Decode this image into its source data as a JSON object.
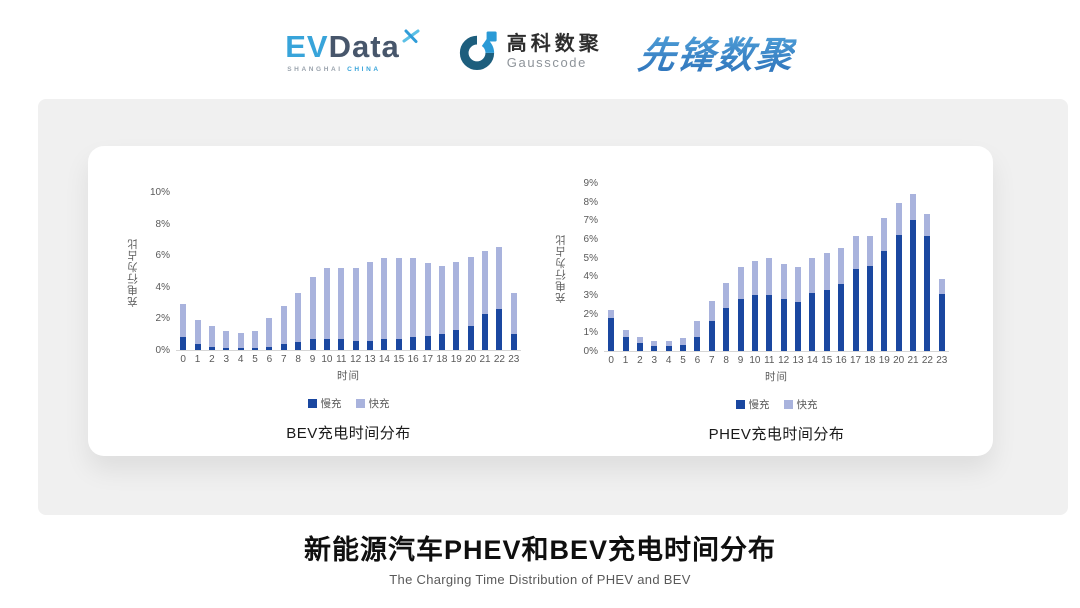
{
  "header": {
    "evdata": {
      "part1": "EV",
      "part2": "Data",
      "sub1": "SHANGHAI",
      "sub2": "CHINA"
    },
    "gausscode": {
      "name_cn": "高科数聚",
      "name_en": "Gausscode"
    },
    "xianfeng": {
      "text": "先锋数聚"
    }
  },
  "icons": {
    "evdata_x": "four-point-propeller-star",
    "gausscode_mark": "two-tone-g-ring-with-square-dot"
  },
  "colors": {
    "slow_charge": "#1A47A0",
    "fast_charge": "#A9B3DD",
    "axis_text": "#595959",
    "axis_line": "#D6D6D6",
    "panel_gray": "#F0F0F0",
    "evdata_blue": "#38A4DA",
    "evdata_dark": "#47566B",
    "gauss_dark": "#1D5E7D",
    "gauss_bright": "#2A9AD6",
    "xianfeng_blue": "#2E7DC6"
  },
  "chart_data": [
    {
      "type": "bar",
      "stacked": true,
      "title": "BEV充电时间分布",
      "xlabel": "时间",
      "ylabel": "充电行为占比",
      "ylim": [
        0,
        10
      ],
      "ytick_step": 2,
      "ytick_suffix": "%",
      "grid": false,
      "legend_position": "bottom",
      "categories": [
        "0",
        "1",
        "2",
        "3",
        "4",
        "5",
        "6",
        "7",
        "8",
        "9",
        "10",
        "11",
        "12",
        "13",
        "14",
        "15",
        "16",
        "17",
        "18",
        "19",
        "20",
        "21",
        "22",
        "23"
      ],
      "series": [
        {
          "name": "慢充",
          "color": "#1A47A0",
          "values": [
            0.8,
            0.4,
            0.2,
            0.1,
            0.1,
            0.1,
            0.2,
            0.4,
            0.5,
            0.7,
            0.7,
            0.7,
            0.6,
            0.6,
            0.7,
            0.7,
            0.8,
            0.9,
            1.0,
            1.3,
            1.5,
            2.3,
            2.6,
            1.0
          ]
        },
        {
          "name": "快充",
          "color": "#A9B3DD",
          "values": [
            2.1,
            1.5,
            1.3,
            1.1,
            1.0,
            1.1,
            1.8,
            2.4,
            3.1,
            3.9,
            4.5,
            4.5,
            4.6,
            5.0,
            5.1,
            5.1,
            5.0,
            4.6,
            4.3,
            4.3,
            4.4,
            4.0,
            3.9,
            2.6
          ]
        }
      ]
    },
    {
      "type": "bar",
      "stacked": true,
      "title": "PHEV充电时间分布",
      "xlabel": "时间",
      "ylabel": "充电行为占比",
      "ylim": [
        0,
        9
      ],
      "ytick_step": 1,
      "ytick_suffix": "%",
      "grid": false,
      "legend_position": "bottom",
      "categories": [
        "0",
        "1",
        "2",
        "3",
        "4",
        "5",
        "6",
        "7",
        "8",
        "9",
        "10",
        "11",
        "12",
        "13",
        "14",
        "15",
        "16",
        "17",
        "18",
        "19",
        "20",
        "21",
        "22",
        "23"
      ],
      "series": [
        {
          "name": "慢充",
          "color": "#1A47A0",
          "values": [
            1.75,
            0.75,
            0.45,
            0.25,
            0.25,
            0.3,
            0.75,
            1.6,
            2.3,
            2.8,
            3.0,
            3.0,
            2.8,
            2.65,
            3.1,
            3.25,
            3.6,
            4.4,
            4.55,
            5.35,
            6.2,
            7.0,
            6.15,
            3.05
          ]
        },
        {
          "name": "快充",
          "color": "#A9B3DD",
          "values": [
            0.45,
            0.4,
            0.3,
            0.3,
            0.3,
            0.4,
            0.85,
            1.1,
            1.35,
            1.7,
            1.8,
            2.0,
            1.85,
            1.85,
            1.9,
            2.0,
            1.9,
            1.75,
            1.6,
            1.75,
            1.75,
            1.4,
            1.2,
            0.8
          ]
        }
      ]
    }
  ],
  "footer": {
    "title": "新能源汽车PHEV和BEV充电时间分布",
    "subtitle": "The Charging Time Distribution of PHEV and BEV"
  }
}
